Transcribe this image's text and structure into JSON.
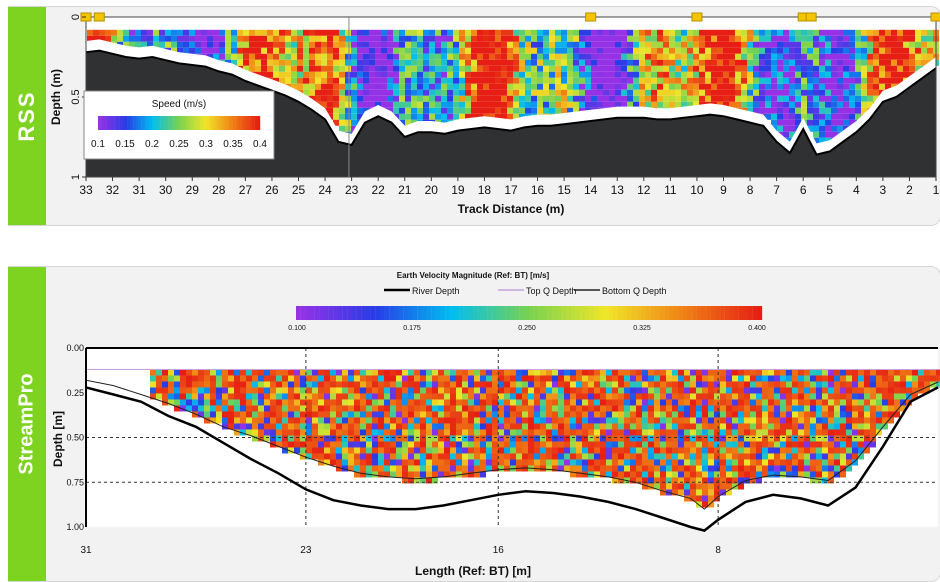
{
  "rss": {
    "side_label": "RSS",
    "chart_data": {
      "type": "heatmap",
      "title": "",
      "xlabel": "Track Distance (m)",
      "ylabel": "Depth (m)",
      "x_ticks": [
        "33",
        "32",
        "31",
        "30",
        "29",
        "28",
        "27",
        "26",
        "25",
        "24",
        "23",
        "22",
        "21",
        "20",
        "19",
        "18",
        "17",
        "16",
        "15",
        "14",
        "13",
        "12",
        "11",
        "10",
        "9",
        "8",
        "7",
        "6",
        "5",
        "4",
        "3",
        "2",
        "1"
      ],
      "y_ticks": [
        "0",
        "0.5",
        "1"
      ],
      "colorbar": {
        "title": "Speed (m/s)",
        "ticks": [
          "0.1",
          "0.15",
          "0.2",
          "0.25",
          "0.3",
          "0.35",
          "0.4"
        ],
        "range": [
          0.1,
          0.4
        ],
        "position": "bottom-left"
      },
      "xlim": [
        33,
        1
      ],
      "ylim": [
        0,
        1
      ],
      "x_reversed": true,
      "bottom_depth_m": [
        [
          33,
          0.22
        ],
        [
          32.5,
          0.21
        ],
        [
          32,
          0.23
        ],
        [
          31.5,
          0.25
        ],
        [
          31,
          0.26
        ],
        [
          30.5,
          0.25
        ],
        [
          30,
          0.27
        ],
        [
          29.5,
          0.29
        ],
        [
          29,
          0.3
        ],
        [
          28.5,
          0.31
        ],
        [
          28,
          0.34
        ],
        [
          27.5,
          0.36
        ],
        [
          27,
          0.4
        ],
        [
          26.5,
          0.43
        ],
        [
          26,
          0.46
        ],
        [
          25.5,
          0.49
        ],
        [
          25,
          0.53
        ],
        [
          24.5,
          0.58
        ],
        [
          24,
          0.64
        ],
        [
          23.5,
          0.78
        ],
        [
          23,
          0.8
        ],
        [
          22.5,
          0.66
        ],
        [
          22,
          0.62
        ],
        [
          21.5,
          0.66
        ],
        [
          21,
          0.75
        ],
        [
          20.5,
          0.72
        ],
        [
          20,
          0.72
        ],
        [
          19.5,
          0.73
        ],
        [
          19,
          0.71
        ],
        [
          18.5,
          0.7
        ],
        [
          18,
          0.69
        ],
        [
          17.5,
          0.7
        ],
        [
          17,
          0.71
        ],
        [
          16.5,
          0.69
        ],
        [
          16,
          0.68
        ],
        [
          15.5,
          0.68
        ],
        [
          15,
          0.67
        ],
        [
          14.5,
          0.66
        ],
        [
          14,
          0.65
        ],
        [
          13.5,
          0.64
        ],
        [
          13,
          0.63
        ],
        [
          12.5,
          0.63
        ],
        [
          12,
          0.63
        ],
        [
          11.5,
          0.64
        ],
        [
          11,
          0.64
        ],
        [
          10.5,
          0.63
        ],
        [
          10,
          0.62
        ],
        [
          9.5,
          0.61
        ],
        [
          9,
          0.62
        ],
        [
          8.5,
          0.64
        ],
        [
          8,
          0.66
        ],
        [
          7.5,
          0.68
        ],
        [
          7,
          0.78
        ],
        [
          6.5,
          0.85
        ],
        [
          6,
          0.7
        ],
        [
          5.5,
          0.86
        ],
        [
          5,
          0.84
        ],
        [
          4.5,
          0.78
        ],
        [
          4,
          0.72
        ],
        [
          3.5,
          0.64
        ],
        [
          3,
          0.53
        ],
        [
          2.5,
          0.5
        ],
        [
          2,
          0.44
        ],
        [
          1.5,
          0.38
        ],
        [
          1,
          0.32
        ]
      ],
      "markers_x": [
        33,
        32.5,
        14,
        10,
        6,
        5.7,
        1
      ]
    }
  },
  "streampro": {
    "side_label": "StreamPro",
    "chart_data": {
      "type": "heatmap",
      "title": "Earth Velocity Magnitude (Ref: BT) [m/s]",
      "xlabel": "Length (Ref: BT) [m]",
      "ylabel": "Depth [m]",
      "legend": [
        "River Depth",
        "Top Q Depth",
        "Bottom Q Depth"
      ],
      "colors": {
        "river": "#000000",
        "top_q": "#c8a2e0",
        "bottom_q": "#222222"
      },
      "colorbar": {
        "ticks": [
          "0.100",
          "0.175",
          "0.250",
          "0.325",
          "0.400"
        ],
        "range": [
          0.1,
          0.4
        ],
        "position": "top"
      },
      "x_ticks": [
        "31",
        "23",
        "16",
        "8"
      ],
      "y_ticks": [
        "0.00",
        "0.25",
        "0.50",
        "0.75",
        "1.00"
      ],
      "xlim": [
        31,
        0
      ],
      "ylim": [
        0,
        1
      ],
      "grid": "dashed",
      "river_depth_m": [
        [
          31,
          0.22
        ],
        [
          30,
          0.26
        ],
        [
          29,
          0.3
        ],
        [
          28,
          0.38
        ],
        [
          27,
          0.44
        ],
        [
          26,
          0.53
        ],
        [
          25,
          0.62
        ],
        [
          24,
          0.7
        ],
        [
          23,
          0.79
        ],
        [
          22,
          0.85
        ],
        [
          21,
          0.88
        ],
        [
          20,
          0.9
        ],
        [
          19,
          0.9
        ],
        [
          18,
          0.88
        ],
        [
          17,
          0.85
        ],
        [
          16,
          0.82
        ],
        [
          15,
          0.8
        ],
        [
          14,
          0.81
        ],
        [
          13,
          0.83
        ],
        [
          12,
          0.86
        ],
        [
          11,
          0.9
        ],
        [
          10,
          0.95
        ],
        [
          9,
          1.0
        ],
        [
          8.5,
          1.02
        ],
        [
          8,
          0.96
        ],
        [
          7,
          0.86
        ],
        [
          6,
          0.82
        ],
        [
          5,
          0.84
        ],
        [
          4,
          0.88
        ],
        [
          3,
          0.78
        ],
        [
          2,
          0.55
        ],
        [
          1,
          0.3
        ],
        [
          0,
          0.22
        ]
      ],
      "bottom_q_m": [
        [
          31,
          0.18
        ],
        [
          30,
          0.21
        ],
        [
          29,
          0.26
        ],
        [
          28,
          0.31
        ],
        [
          27,
          0.37
        ],
        [
          26,
          0.44
        ],
        [
          25,
          0.49
        ],
        [
          24,
          0.55
        ],
        [
          23,
          0.61
        ],
        [
          22,
          0.66
        ],
        [
          21,
          0.7
        ],
        [
          20,
          0.72
        ],
        [
          19,
          0.73
        ],
        [
          18,
          0.72
        ],
        [
          17,
          0.7
        ],
        [
          16,
          0.68
        ],
        [
          15,
          0.67
        ],
        [
          14,
          0.68
        ],
        [
          13,
          0.7
        ],
        [
          12,
          0.72
        ],
        [
          11,
          0.75
        ],
        [
          10,
          0.8
        ],
        [
          9,
          0.84
        ],
        [
          8.5,
          0.9
        ],
        [
          8,
          0.83
        ],
        [
          7,
          0.74
        ],
        [
          6,
          0.71
        ],
        [
          5,
          0.72
        ],
        [
          4,
          0.74
        ],
        [
          3,
          0.63
        ],
        [
          2,
          0.44
        ],
        [
          1,
          0.26
        ],
        [
          0,
          0.19
        ]
      ],
      "top_q_depth_m": 0.12
    }
  }
}
